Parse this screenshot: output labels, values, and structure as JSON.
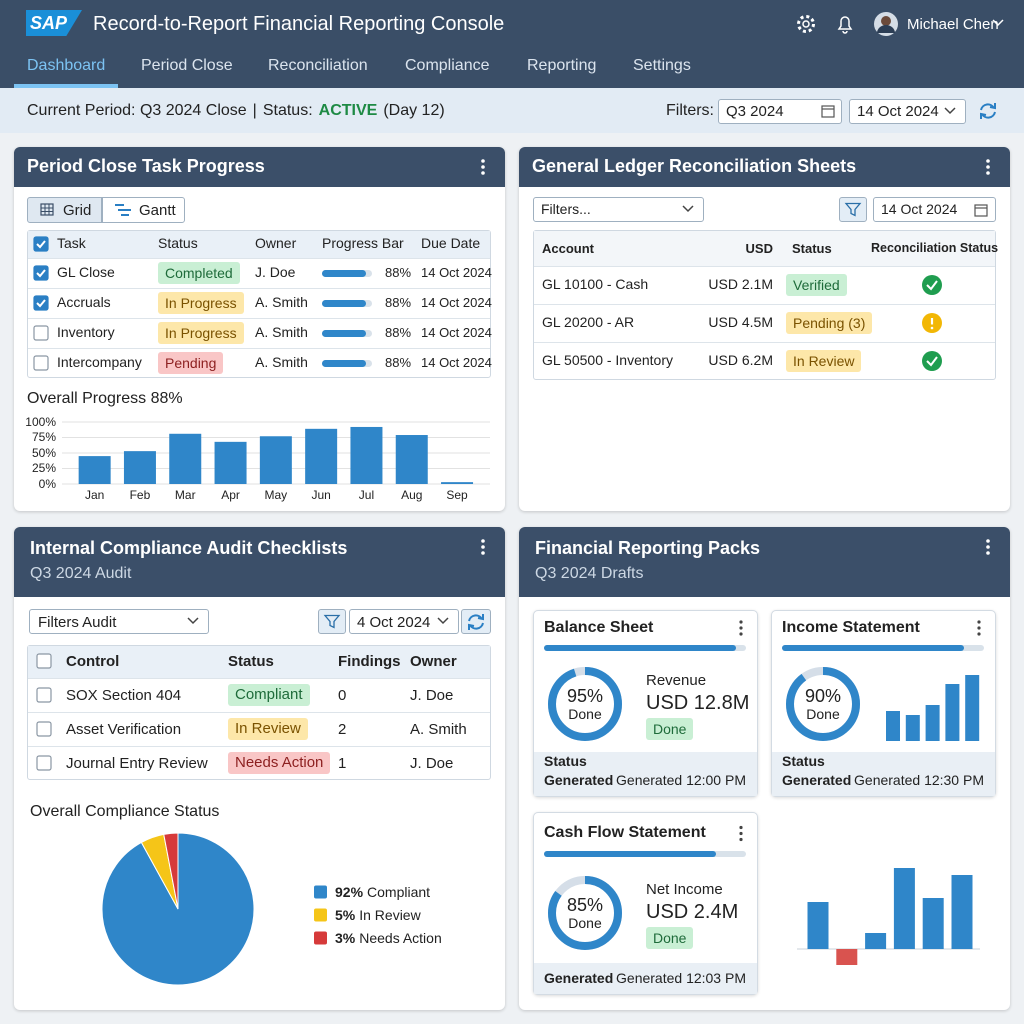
{
  "header": {
    "logo": "SAP",
    "title": "Record-to-Report Financial Reporting Console",
    "user": "Michael Chen"
  },
  "nav": {
    "items": [
      "Dashboard",
      "Period Close",
      "Reconciliation",
      "Compliance",
      "Reporting",
      "Settings"
    ],
    "active": 0
  },
  "status_bar": {
    "period": "Current Period: Q3 2024 Close",
    "separator": "|",
    "status_label": "Status:",
    "status": "ACTIVE",
    "day": "(Day 12)",
    "filters_label": "Filters:",
    "period_filter": "Q3 2024",
    "date_filter": "14 Oct 2024"
  },
  "period_close": {
    "title": "Period Close Task Progress",
    "views": [
      "Grid",
      "Gantt"
    ],
    "active_view": 0,
    "header_checked": true,
    "columns": [
      "Task",
      "Status",
      "Owner",
      "Progress Bar",
      "Due Date"
    ],
    "rows": [
      {
        "checked": true,
        "task": "GL Close",
        "status": "Completed",
        "tone": "green",
        "owner": "J. Doe",
        "progress": {
          "value": 88,
          "label": "88%"
        },
        "due": "14 Oct 2024"
      },
      {
        "checked": true,
        "task": "Accruals",
        "status": "In Progress",
        "tone": "yellow",
        "owner": "A. Smith",
        "progress": {
          "value": 88,
          "label": "88%"
        },
        "due": "14 Oct 2024"
      },
      {
        "checked": false,
        "task": "Inventory",
        "status": "In Progress",
        "tone": "yellow",
        "owner": "A. Smith",
        "progress": {
          "value": 88,
          "label": "88%"
        },
        "due": "14 Oct 2024"
      },
      {
        "checked": false,
        "task": "Intercompany",
        "status": "Pending",
        "tone": "red",
        "owner": "A. Smith",
        "progress": {
          "value": 88,
          "label": "88%"
        },
        "due": "14 Oct 2024"
      }
    ],
    "chart": {
      "type": "bar",
      "title": "Overall Progress 88%",
      "categories": [
        "Jan",
        "Feb",
        "Mar",
        "Apr",
        "May",
        "Jun",
        "Jul",
        "Aug",
        "Sep"
      ],
      "values": [
        45,
        53,
        81,
        68,
        77,
        89,
        92,
        79,
        3
      ],
      "color": "#2f86c9",
      "ylim": [
        0,
        100
      ],
      "yticks": [
        {
          "value": 0,
          "label": "0%"
        },
        {
          "value": 25,
          "label": "25%"
        },
        {
          "value": 50,
          "label": "50%"
        },
        {
          "value": 75,
          "label": "75%"
        },
        {
          "value": 100,
          "label": "100%"
        }
      ],
      "grid": true
    }
  },
  "gl_reconciliation": {
    "title": "General Ledger Reconciliation Sheets",
    "filter": "Filters...",
    "date": "14 Oct 2024",
    "columns": [
      "Account",
      "USD",
      "Status",
      "Reconciliation Status"
    ],
    "rows": [
      {
        "account": "GL 10100 - Cash",
        "usd": "USD 2.1M",
        "status": "Verified",
        "tone": "green",
        "recon": "ok"
      },
      {
        "account": "GL 20200 - AR",
        "usd": "USD 4.5M",
        "status": "Pending (3)",
        "tone": "yellow",
        "recon": "warn"
      },
      {
        "account": "GL 50500 - Inventory",
        "usd": "USD 6.2M",
        "status": "In Review",
        "tone": "yellow",
        "recon": "ok"
      }
    ]
  },
  "compliance": {
    "title": "Internal Compliance Audit Checklists",
    "subtitle": "Q3 2024 Audit",
    "filter": "Filters Audit",
    "date": "4 Oct 2024",
    "header_checked": false,
    "columns": [
      "Control",
      "Status",
      "Findings",
      "Owner"
    ],
    "rows": [
      {
        "checked": false,
        "control": "SOX Section 404",
        "status": "Compliant",
        "tone": "green",
        "findings": 0,
        "owner": "J. Doe"
      },
      {
        "checked": false,
        "control": "Asset Verification",
        "status": "In Review",
        "tone": "yellow",
        "findings": 2,
        "owner": "A. Smith"
      },
      {
        "checked": false,
        "control": "Journal Entry Review",
        "status": "Needs Action",
        "tone": "red",
        "findings": 1,
        "owner": "J. Doe"
      }
    ],
    "chart": {
      "type": "pie",
      "title": "Overall Compliance Status",
      "categories": [
        "Compliant",
        "In Review",
        "Needs Action"
      ],
      "values": [
        92,
        5,
        3
      ],
      "value_labels": [
        "92%",
        "5%",
        "3%"
      ],
      "colors": [
        "#2f86c9",
        "#f5c518",
        "#d63a3a"
      ]
    }
  },
  "reporting": {
    "title": "Financial Reporting Packs",
    "subtitle": "Q3 2024 Drafts",
    "cards": [
      {
        "title": "Balance Sheet",
        "completion": {
          "value": 95,
          "label": "95%"
        },
        "completion_caption": "Done",
        "metric_label": "Revenue",
        "metric_value": "USD 12.8M",
        "badge": "Done",
        "footer": {
          "status_label": "Status",
          "generated_label": "Generated",
          "generated_at": "Generated 12:00 PM"
        }
      },
      {
        "title": "Income Statement",
        "completion": {
          "value": 90,
          "label": "90%"
        },
        "completion_caption": "Done",
        "chart": {
          "type": "bar",
          "values": [
            30,
            26,
            36,
            57,
            66
          ],
          "ylim": [
            0,
            70
          ],
          "color": "#2f86c9"
        },
        "footer": {
          "status_label": "Status",
          "generated_label": "Generated",
          "generated_at": "Generated 12:30 PM"
        }
      },
      {
        "title": "Cash Flow Statement",
        "completion": {
          "value": 85,
          "label": "85%"
        },
        "completion_caption": "Done",
        "metric_label": "Net Income",
        "metric_value": "USD 2.4M",
        "badge": "Done",
        "footer": {
          "generated_label": "Generated",
          "generated_at": "Generated 12:03 PM"
        }
      }
    ],
    "chart": {
      "type": "bar",
      "values": [
        47,
        -16,
        16,
        81,
        51,
        74
      ],
      "ylim": [
        -20,
        90
      ],
      "color": "#2f86c9",
      "negative_color": "#d9534f"
    }
  }
}
